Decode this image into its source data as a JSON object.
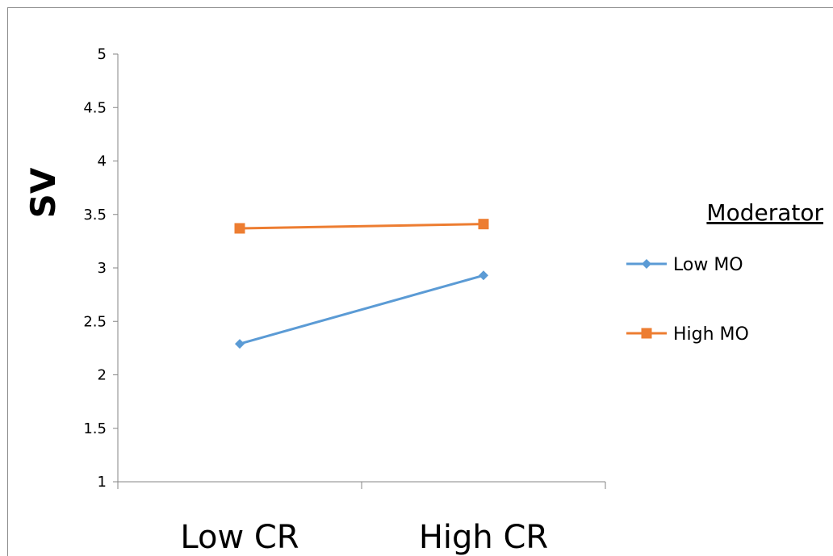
{
  "chart_data": {
    "type": "line",
    "categories": [
      "Low CR",
      "High CR"
    ],
    "ylabel": "SV",
    "xlabel": "",
    "ylim": [
      1,
      5
    ],
    "yticks": [
      1,
      1.5,
      2,
      2.5,
      3,
      3.5,
      4,
      4.5,
      5
    ],
    "ytick_labels": [
      "1",
      "1.5",
      "2",
      "2.5",
      "3",
      "3.5",
      "4",
      "4.5",
      "5"
    ],
    "grid": false,
    "legend": {
      "title": "Moderator",
      "placement": "right"
    },
    "series": [
      {
        "name": "Low MO",
        "values": [
          2.29,
          2.93
        ],
        "color": "#5b9bd5",
        "marker": "diamond"
      },
      {
        "name": "High MO",
        "values": [
          3.37,
          3.41
        ],
        "color": "#ed7d31",
        "marker": "square"
      }
    ]
  }
}
